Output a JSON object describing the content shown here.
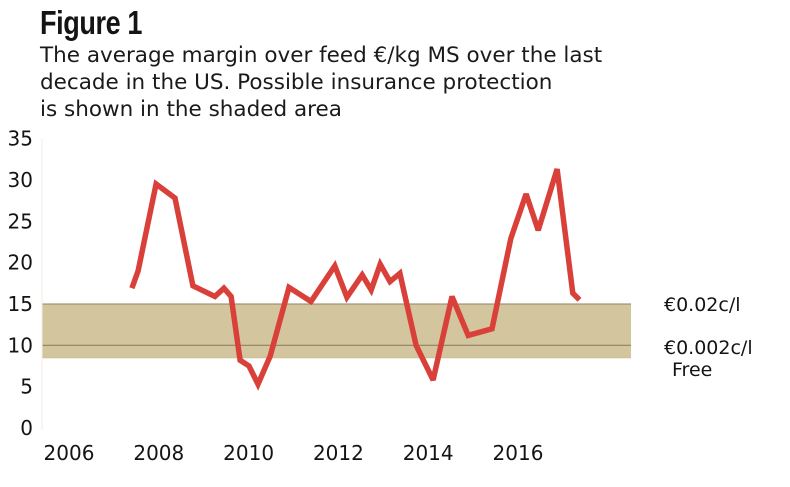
{
  "header": {
    "title": "Figure 1",
    "subtitle_lines": [
      "The average margin over feed €/kg MS over the last",
      "decade in the US. Possible insurance protection",
      "is shown in the shaded area"
    ]
  },
  "colors": {
    "line": "#d9403a",
    "band_fill": "#d3c69e",
    "band_edge": "#8f8260",
    "text": "#141414"
  },
  "chart_data": {
    "type": "line",
    "title": "Figure 1",
    "subtitle": "The average margin over feed €/kg MS over the last decade in the US. Possible insurance protection is shown in the shaded area",
    "xlabel": "",
    "ylabel": "",
    "xlim": [
      2006,
      2016
    ],
    "ylim": [
      0,
      35
    ],
    "x_ticks": [
      "2006",
      "2008",
      "2010",
      "2012",
      "2014",
      "2016"
    ],
    "x_tick_values": [
      2006,
      2008,
      2010,
      2012,
      2014,
      2016
    ],
    "y_ticks": [
      "0",
      "5",
      "10",
      "15",
      "20",
      "25",
      "30",
      "35"
    ],
    "y_tick_values": [
      0,
      5,
      10,
      15,
      20,
      25,
      30,
      35
    ],
    "grid": false,
    "legend": "none",
    "series": [
      {
        "name": "Average margin over feed (€/kg MS)",
        "x": [
          2007.4,
          2007.54,
          2007.94,
          2008.36,
          2008.76,
          2009.25,
          2009.45,
          2009.61,
          2009.81,
          2010.01,
          2010.21,
          2010.48,
          2010.9,
          2011.39,
          2011.92,
          2012.19,
          2012.53,
          2012.73,
          2012.93,
          2013.15,
          2013.37,
          2013.73,
          2014.11,
          2014.53,
          2014.89,
          2015.42,
          2015.84,
          2016.18,
          2016.45,
          2016.87,
          2017.22,
          2017.37
        ],
        "values": [
          16.9,
          19.0,
          29.5,
          27.8,
          17.2,
          15.9,
          16.9,
          15.9,
          8.2,
          7.5,
          5.3,
          8.7,
          17.0,
          15.3,
          19.6,
          15.8,
          18.5,
          16.7,
          19.8,
          17.7,
          18.7,
          10.0,
          5.8,
          15.9,
          11.2,
          12.0,
          22.9,
          28.3,
          23.9,
          31.3,
          16.3,
          15.5
        ]
      }
    ],
    "shaded_band": {
      "from": 8.5,
      "to": 15,
      "divider": 10
    },
    "annotations": [
      {
        "text": "€0.02c/l",
        "y": 15
      },
      {
        "text": "€0.002c/l",
        "y": 10
      },
      {
        "text": "Free",
        "y": 8.5
      }
    ]
  }
}
